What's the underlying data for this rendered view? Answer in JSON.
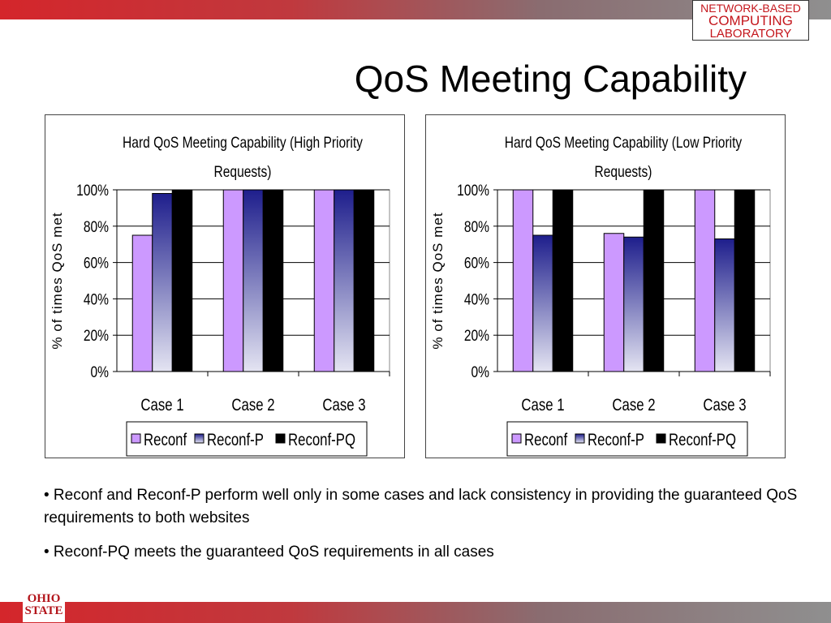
{
  "header": {
    "lab_logo": [
      "NETWORK-BASED",
      "COMPUTING",
      "LABORATORY"
    ]
  },
  "slide": {
    "title": "QoS Meeting Capability"
  },
  "bullets": [
    "• Reconf and Reconf-P perform well only in some cases and lack consistency in providing the guaranteed QoS requirements to both websites",
    "• Reconf-PQ meets the guaranteed QoS requirements in all cases"
  ],
  "footer": {
    "osu_logo": [
      "OHIO",
      "STATE"
    ]
  },
  "colors": {
    "reconf": "#cc99ff",
    "reconf_p_top": "#1e1e8c",
    "reconf_p_bottom": "#e4e4f2",
    "reconf_pq": "#000000"
  },
  "chart_data": [
    {
      "type": "bar",
      "title": [
        "Hard QoS Meeting Capability (High Priority",
        "Requests)"
      ],
      "ylabel": "% of times QoS met",
      "ylim": [
        0,
        100
      ],
      "yticks": [
        "0%",
        "20%",
        "40%",
        "60%",
        "80%",
        "100%"
      ],
      "categories": [
        "Case 1",
        "Case 2",
        "Case 3"
      ],
      "series": [
        {
          "name": "Reconf",
          "values": [
            75,
            100,
            100
          ]
        },
        {
          "name": "Reconf-P",
          "values": [
            98,
            100,
            100
          ]
        },
        {
          "name": "Reconf-PQ",
          "values": [
            100,
            100,
            100
          ]
        }
      ],
      "grid": true,
      "legend": "bottom"
    },
    {
      "type": "bar",
      "title": [
        "Hard QoS Meeting Capability (Low Priority",
        "Requests)"
      ],
      "ylabel": "% of times QoS met",
      "ylim": [
        0,
        100
      ],
      "yticks": [
        "0%",
        "20%",
        "40%",
        "60%",
        "80%",
        "100%"
      ],
      "categories": [
        "Case 1",
        "Case 2",
        "Case 3"
      ],
      "series": [
        {
          "name": "Reconf",
          "values": [
            100,
            76,
            100
          ]
        },
        {
          "name": "Reconf-P",
          "values": [
            75,
            74,
            73
          ]
        },
        {
          "name": "Reconf-PQ",
          "values": [
            100,
            100,
            100
          ]
        }
      ],
      "grid": true,
      "legend": "bottom"
    }
  ]
}
